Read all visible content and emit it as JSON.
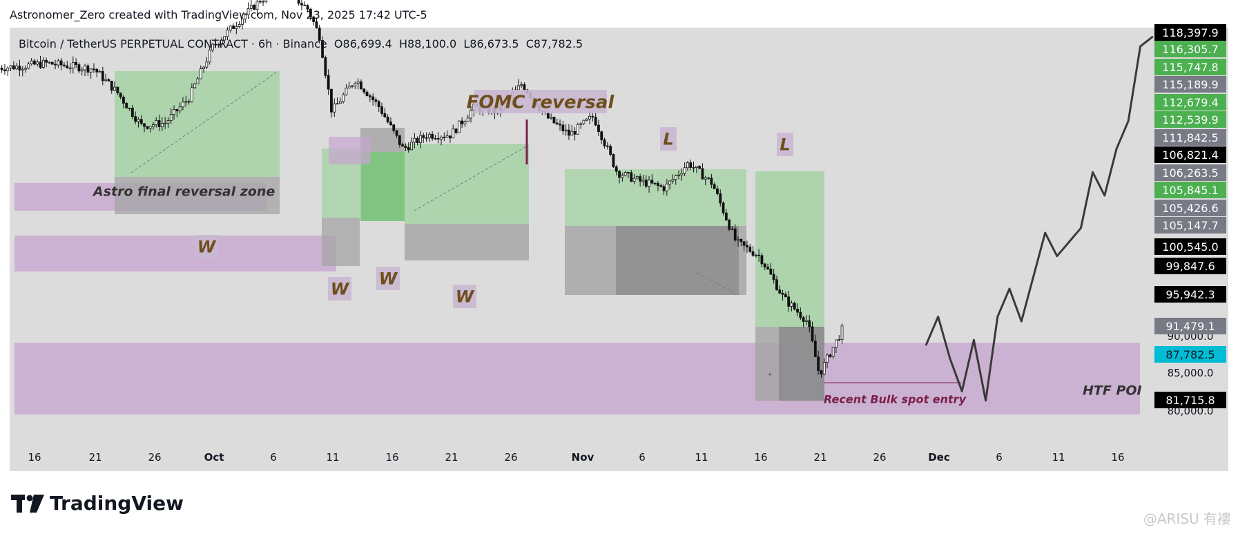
{
  "header": {
    "attribution": "Astronomer_Zero created with TradingView.com, Nov 23, 2025 17:42 UTC-5"
  },
  "symbol": {
    "name": "Bitcoin / TetherUS PERPETUAL CONTRACT · 6h · Binance",
    "open": "O86,699.4",
    "high": "H88,100.0",
    "low": "L86,673.5",
    "close": "C87,782.5"
  },
  "footer": {
    "brand": "TradingView",
    "watermark": "@ARISU 有褸"
  },
  "colors": {
    "chart_bg": "#dcdcdc",
    "green_zone": "#9fd19f",
    "green_zone_dark": "#6cbf6c",
    "gray_zone": "#a4a4a4",
    "gray_zone_dark": "#8a8a8a",
    "purple_zone": "#c7a4cf",
    "label_text": "#6e4f1c",
    "maroon": "#7a1f4b",
    "candle": "#111111",
    "label_green": "#4caf50",
    "label_gray": "#787b86",
    "label_black": "#000000",
    "label_cyan": "#00bcd4"
  },
  "chart_data": {
    "type": "line",
    "title": "Bitcoin / TetherUS PERPETUAL CONTRACT · 6h · Binance",
    "xlabel": "",
    "ylabel": "",
    "x_ticks": [
      "16",
      "21",
      "26",
      "Oct",
      "6",
      "11",
      "16",
      "21",
      "26",
      "Nov",
      "6",
      "11",
      "16",
      "21",
      "26",
      "Dec",
      "6",
      "11",
      "16"
    ],
    "y_ticks": [
      "90,000.0",
      "85,000.0",
      "80,000.0"
    ],
    "ylim": [
      78500,
      119500
    ],
    "price_series": {
      "name": "",
      "x": [
        "2025-09-13",
        "2025-09-15",
        "2025-09-17",
        "2025-09-19",
        "2025-09-21",
        "2025-09-23",
        "2025-09-25",
        "2025-09-27",
        "2025-09-29",
        "2025-10-01",
        "2025-10-03",
        "2025-10-05",
        "2025-10-07",
        "2025-10-09",
        "2025-10-10",
        "2025-10-11",
        "2025-10-13",
        "2025-10-15",
        "2025-10-17",
        "2025-10-19",
        "2025-10-21",
        "2025-10-23",
        "2025-10-25",
        "2025-10-27",
        "2025-10-29",
        "2025-10-31",
        "2025-11-02",
        "2025-11-04",
        "2025-11-06",
        "2025-11-08",
        "2025-11-10",
        "2025-11-12",
        "2025-11-14",
        "2025-11-16",
        "2025-11-18",
        "2025-11-20",
        "2025-11-21",
        "2025-11-23"
      ],
      "y": [
        115700,
        115900,
        116200,
        115900,
        115600,
        113000,
        109500,
        109800,
        112500,
        118000,
        120500,
        123000,
        124200,
        122000,
        119000,
        111000,
        114500,
        111500,
        107000,
        108500,
        108500,
        111500,
        111000,
        114000,
        110500,
        108500,
        110500,
        104500,
        103500,
        102800,
        105500,
        103300,
        97000,
        95500,
        91000,
        88500,
        82800,
        87782
      ]
    },
    "projection_series": {
      "name": "",
      "x": [
        "2025-11-30",
        "2025-12-01",
        "2025-12-02",
        "2025-12-03",
        "2025-12-04",
        "2025-12-05",
        "2025-12-06",
        "2025-12-07",
        "2025-12-08",
        "2025-12-10",
        "2025-12-11",
        "2025-12-12",
        "2025-12-13",
        "2025-12-14",
        "2025-12-15",
        "2025-12-16",
        "2025-12-17",
        "2025-12-18",
        "2025-12-19"
      ],
      "y": [
        86000,
        89000,
        84500,
        81000,
        86500,
        80000,
        89000,
        92000,
        88500,
        98000,
        95500,
        97000,
        98500,
        104500,
        102000,
        107000,
        110000,
        118000,
        119000
      ]
    },
    "price_labels": [
      {
        "value": "118,397.9",
        "style": "black"
      },
      {
        "value": "116,305.7",
        "style": "green"
      },
      {
        "value": "115,747.8",
        "style": "green"
      },
      {
        "value": "115,189.9",
        "style": "gray"
      },
      {
        "value": "112,679.4",
        "style": "green"
      },
      {
        "value": "112,539.9",
        "style": "green"
      },
      {
        "value": "111,842.5",
        "style": "gray"
      },
      {
        "value": "106,821.4",
        "style": "black"
      },
      {
        "value": "106,263.5",
        "style": "gray"
      },
      {
        "value": "105,845.1",
        "style": "green"
      },
      {
        "value": "105,426.6",
        "style": "gray"
      },
      {
        "value": "105,147.7",
        "style": "gray"
      },
      {
        "value": "100,545.0",
        "style": "black"
      },
      {
        "value": "99,847.6",
        "style": "black"
      },
      {
        "value": "95,942.3",
        "style": "black"
      },
      {
        "value": "91,479.1",
        "style": "gray"
      },
      {
        "value": "87,782.5",
        "style": "cyan"
      },
      {
        "value": "81,715.8",
        "style": "black"
      }
    ],
    "annotations": [
      {
        "text": "FOMC reversal"
      },
      {
        "text": "Astro final reversal zone"
      },
      {
        "text": "W"
      },
      {
        "text": "W"
      },
      {
        "text": "W"
      },
      {
        "text": "W"
      },
      {
        "text": "L"
      },
      {
        "text": "L"
      },
      {
        "text": "HTF POI"
      },
      {
        "text": "Recent Bulk spot entry"
      }
    ],
    "grid": false
  }
}
